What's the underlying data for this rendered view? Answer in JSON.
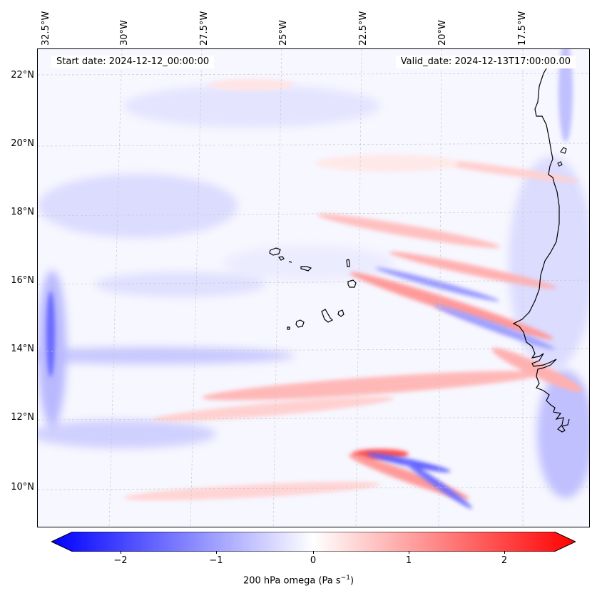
{
  "map": {
    "lon_labels": [
      "32.5°W",
      "30°W",
      "27.5°W",
      "25°W",
      "22.5°W",
      "20°W",
      "17.5°W"
    ],
    "lat_labels": [
      "22°N",
      "20°N",
      "18°N",
      "16°N",
      "14°N",
      "12°N",
      "10°N"
    ],
    "start_date": "Start date: 2024-12-12_00:00:00",
    "valid_date": "Valid_date: 2024-12-13T17:00:00.00",
    "field": "200 hPa omega",
    "extent": {
      "lon_min": -33.0,
      "lon_max": -15.8,
      "lat_min": 8.8,
      "lat_max": 22.8
    },
    "gridlines": true,
    "colormap": "bwr",
    "colors": {
      "negative": "#0000ff",
      "zero": "#ffffff",
      "positive": "#ff0000",
      "coast": "#000000"
    }
  },
  "colorbar": {
    "ticks": [
      "−2",
      "−1",
      "0",
      "1",
      "2"
    ],
    "tick_values": [
      -2,
      -1,
      0,
      1,
      2
    ],
    "vmin": -2.5,
    "vmax": 2.5,
    "label_main": "200 hPa omega (Pa s",
    "label_exp": "−1",
    "label_end": ")"
  }
}
